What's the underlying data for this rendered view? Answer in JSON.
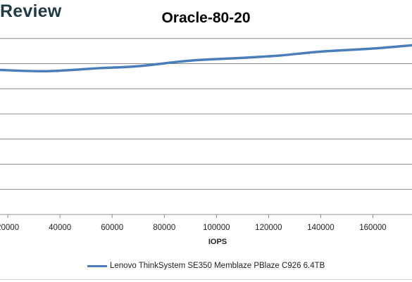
{
  "brand": {
    "text": "Review"
  },
  "chart_data": {
    "type": "line",
    "title": "Oracle-80-20",
    "xlabel": "IOPS",
    "ylabel": "",
    "xlim": [
      17000,
      175000
    ],
    "ylim": [
      0,
      8
    ],
    "x_ticks": [
      20000,
      40000,
      60000,
      80000,
      100000,
      120000,
      140000,
      160000
    ],
    "x_tick_labels": [
      "20000",
      "40000",
      "60000",
      "80000",
      "100000",
      "120000",
      "140000",
      "160000"
    ],
    "y_ticks": [
      1,
      2,
      3,
      4,
      5,
      6,
      7
    ],
    "grid": true,
    "legend_position": "bottom",
    "series": [
      {
        "name": "Lenovo ThinkSystem SE350 Memblaze PBlaze C926 6.4TB",
        "color": "#4a7ebb",
        "x": [
          17000,
          35000,
          55000,
          70000,
          90000,
          110000,
          125000,
          140000,
          160000,
          175000
        ],
        "y": [
          5.75,
          5.7,
          5.82,
          5.9,
          6.12,
          6.23,
          6.33,
          6.48,
          6.6,
          6.73
        ]
      }
    ]
  }
}
